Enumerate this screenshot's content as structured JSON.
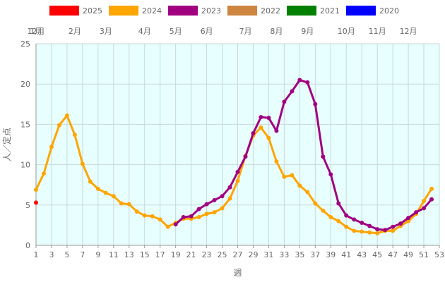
{
  "chart_data": {
    "type": "line",
    "xlabel": "週",
    "ylabel": "人／定点",
    "xlim": [
      1,
      53
    ],
    "ylim": [
      0,
      25
    ],
    "x_ticks": [
      1,
      3,
      5,
      7,
      9,
      11,
      13,
      15,
      17,
      19,
      21,
      23,
      25,
      27,
      29,
      31,
      33,
      35,
      37,
      39,
      41,
      43,
      45,
      47,
      49,
      51,
      53
    ],
    "y_ticks": [
      0,
      5,
      10,
      15,
      20,
      25
    ],
    "grid": true,
    "legend_position": "top",
    "legend": [
      {
        "name": "2025",
        "color": "#ff0000"
      },
      {
        "name": "2024",
        "color": "#ffa500"
      },
      {
        "name": "2023",
        "color": "#a00080"
      },
      {
        "name": "2022",
        "color": "#cd853f"
      },
      {
        "name": "2021",
        "color": "#008000"
      },
      {
        "name": "2020",
        "color": "#0000ff"
      }
    ],
    "month_labels": [
      {
        "label": "1月",
        "week": 1
      },
      {
        "label": "12月",
        "week": 1
      },
      {
        "label": "2月",
        "week": 6
      },
      {
        "label": "3月",
        "week": 10
      },
      {
        "label": "4月",
        "week": 15
      },
      {
        "label": "5月",
        "week": 19
      },
      {
        "label": "6月",
        "week": 23
      },
      {
        "label": "7月",
        "week": 28
      },
      {
        "label": "8月",
        "week": 32
      },
      {
        "label": "9月",
        "week": 36
      },
      {
        "label": "10月",
        "week": 41
      },
      {
        "label": "11月",
        "week": 45
      },
      {
        "label": "12月",
        "week": 49
      }
    ],
    "series": [
      {
        "name": "2024",
        "color": "#ffa500",
        "x": [
          1,
          2,
          3,
          4,
          5,
          6,
          7,
          8,
          9,
          10,
          11,
          12,
          13,
          14,
          15,
          16,
          17,
          18,
          19,
          20,
          21,
          22,
          23,
          24,
          25,
          26,
          27,
          28,
          29,
          30,
          31,
          32,
          33,
          34,
          35,
          36,
          37,
          38,
          39,
          40,
          41,
          42,
          43,
          44,
          45,
          46,
          47,
          48,
          49,
          50,
          51,
          52
        ],
        "values": [
          6.9,
          8.9,
          12.2,
          14.9,
          16.1,
          13.7,
          10.1,
          7.9,
          7.0,
          6.5,
          6.1,
          5.2,
          5.1,
          4.2,
          3.7,
          3.6,
          3.2,
          2.3,
          2.8,
          3.3,
          3.3,
          3.5,
          3.9,
          4.1,
          4.6,
          5.8,
          8.0,
          11.1,
          13.6,
          14.6,
          13.3,
          10.4,
          8.5,
          8.7,
          7.4,
          6.6,
          5.2,
          4.3,
          3.5,
          3.0,
          2.3,
          1.8,
          1.7,
          1.6,
          1.5,
          1.8,
          1.8,
          2.4,
          3.0,
          3.9,
          5.5,
          7.0
        ]
      },
      {
        "name": "2023",
        "color": "#a00080",
        "x": [
          19,
          20,
          21,
          22,
          23,
          24,
          25,
          26,
          27,
          28,
          29,
          30,
          31,
          32,
          33,
          34,
          35,
          36,
          37,
          38,
          39,
          40,
          41,
          42,
          43,
          44,
          45,
          46,
          47,
          48,
          49,
          50,
          51,
          52
        ],
        "values": [
          2.6,
          3.5,
          3.6,
          4.5,
          5.1,
          5.6,
          6.1,
          7.2,
          9.1,
          11.0,
          13.9,
          15.9,
          15.8,
          14.2,
          17.8,
          19.1,
          20.5,
          20.2,
          17.5,
          11.0,
          8.8,
          5.2,
          3.7,
          3.2,
          2.8,
          2.4,
          2.0,
          1.9,
          2.3,
          2.7,
          3.4,
          4.1,
          4.6,
          5.7
        ]
      },
      {
        "name": "2025",
        "color": "#ff0000",
        "x": [
          1
        ],
        "values": [
          5.3
        ]
      }
    ]
  }
}
